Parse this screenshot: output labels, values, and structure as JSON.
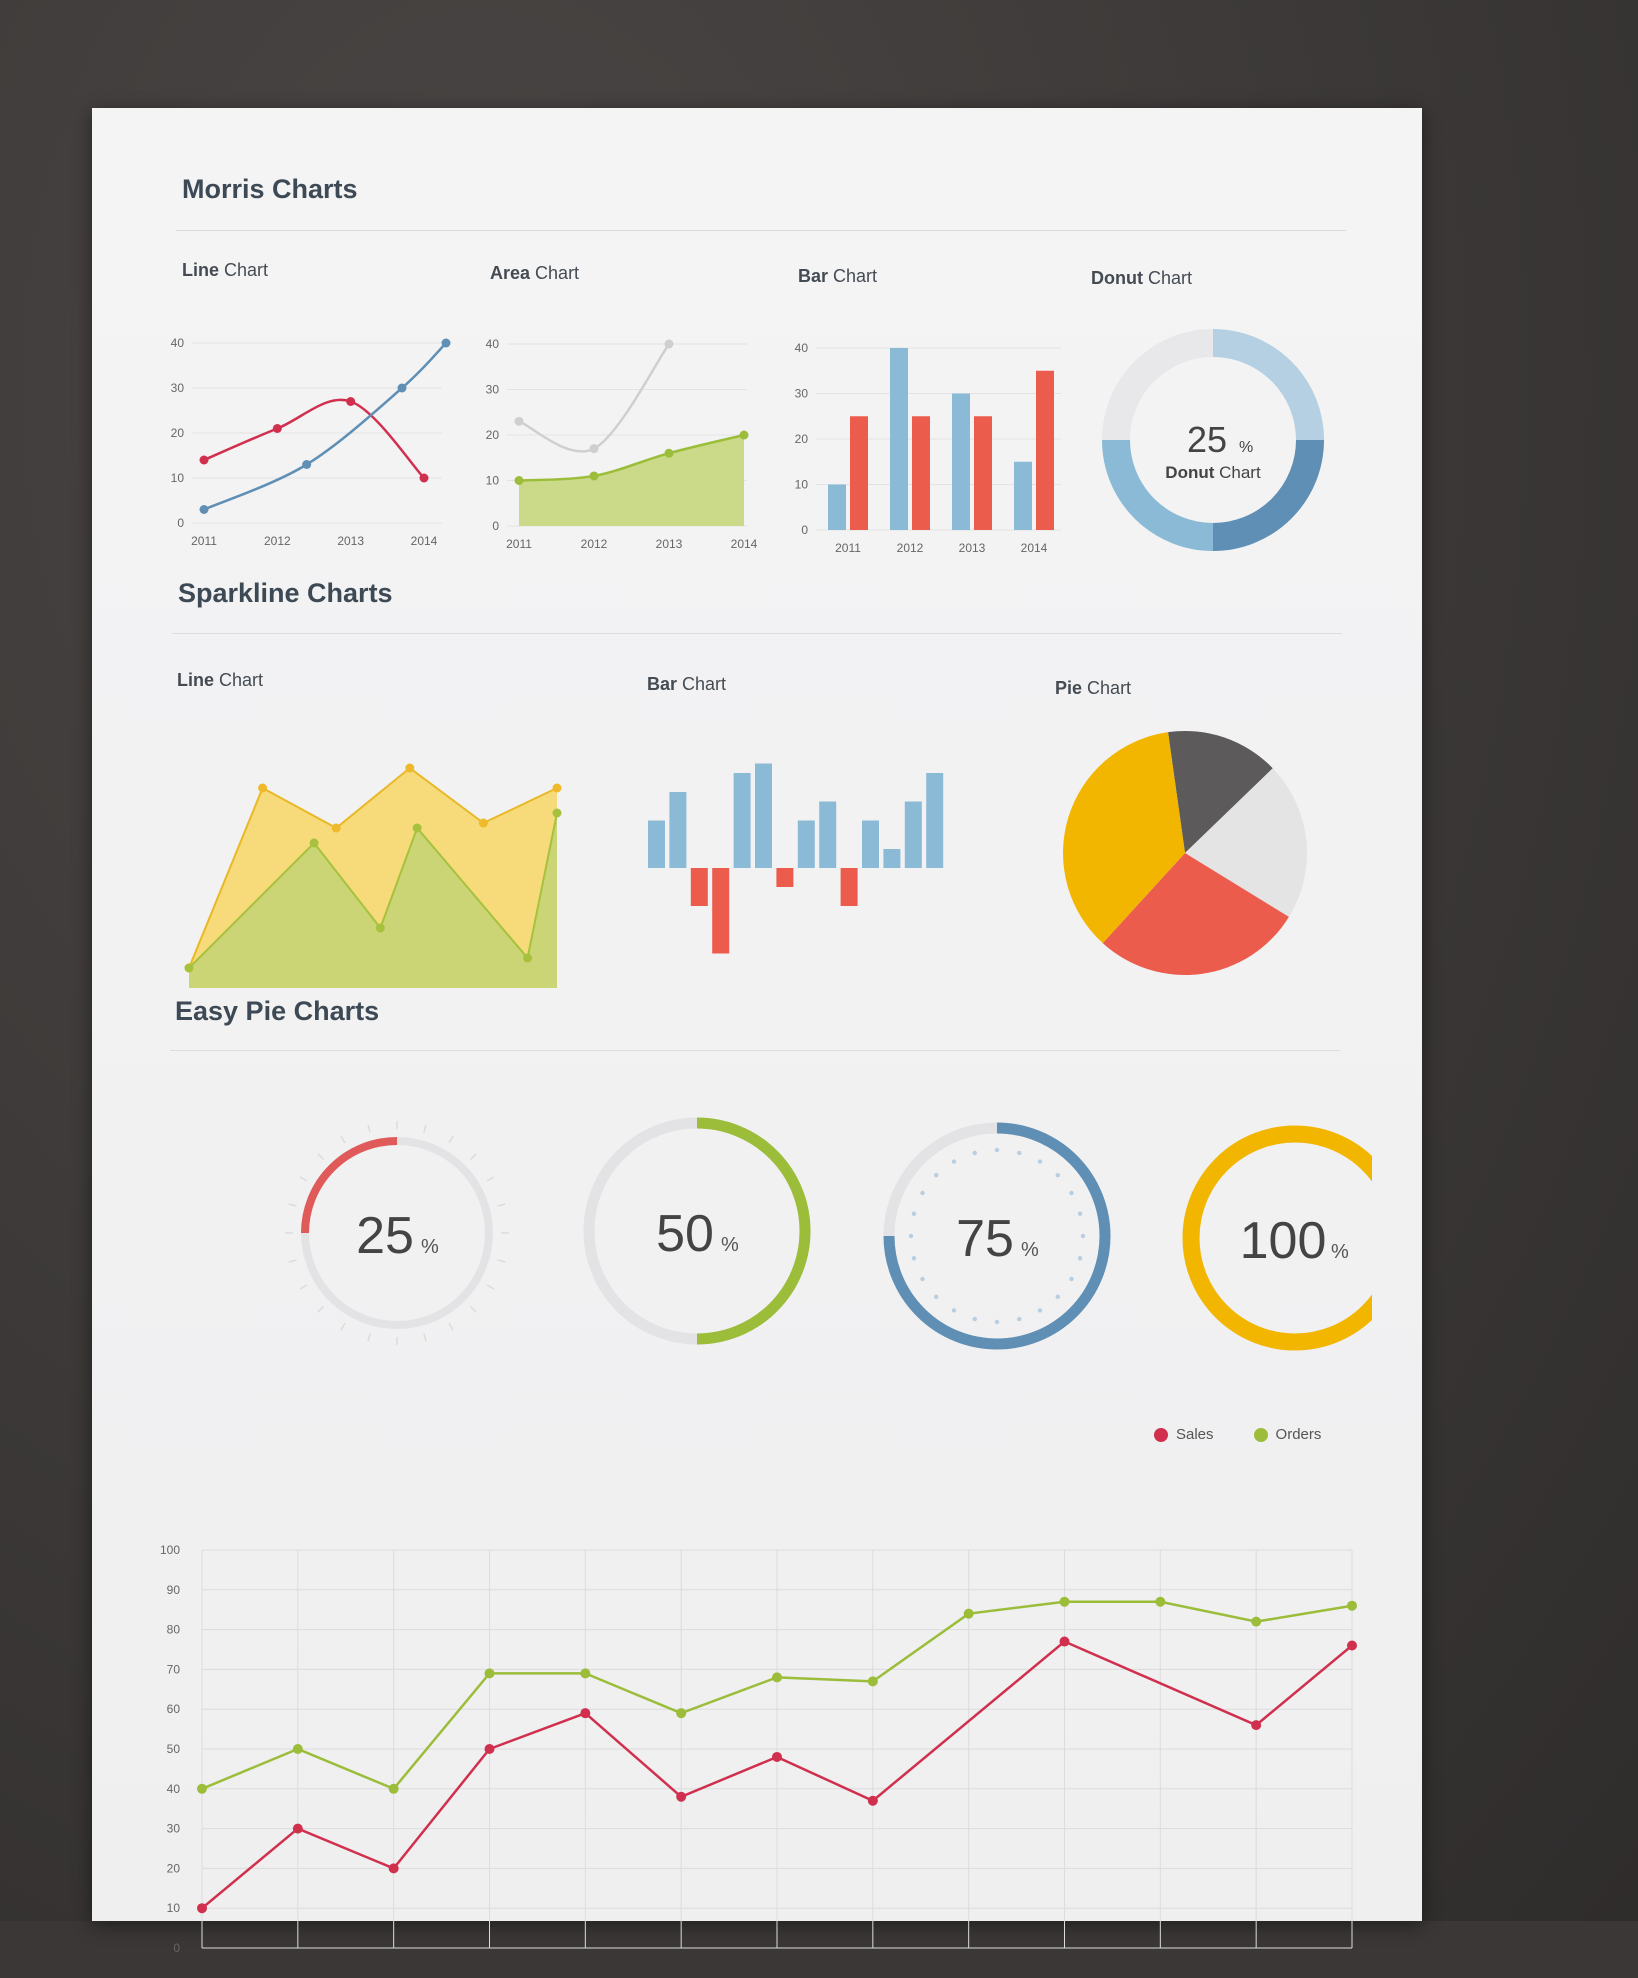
{
  "sections": {
    "morris": "Morris Charts",
    "sparkline": "Sparkline Charts",
    "easypie": "Easy Pie Charts"
  },
  "morris": {
    "line": {
      "title_bold": "Line",
      "title_rest": "Chart"
    },
    "area": {
      "title_bold": "Area",
      "title_rest": "Chart"
    },
    "bar": {
      "title_bold": "Bar",
      "title_rest": "Chart"
    },
    "donut": {
      "title_bold": "Donut",
      "title_rest": "Chart"
    }
  },
  "sparkline": {
    "line": {
      "title_bold": "Line",
      "title_rest": "Chart"
    },
    "bar": {
      "title_bold": "Bar",
      "title_rest": "Chart"
    },
    "pie": {
      "title_bold": "Pie",
      "title_rest": "Chart"
    }
  },
  "big_chart": {
    "legend": [
      "Sales",
      "Orders"
    ]
  },
  "colors": {
    "red": "#d0304e",
    "blue": "#5f8fb5",
    "lightblue": "#8bbad6",
    "green": "#9bbd3a",
    "yellow": "#f0c94a",
    "orange": "#f2b600",
    "coral": "#ec5c4d",
    "gray": "#cfcfcf",
    "darkgray": "#5c5a5b"
  },
  "chart_data": [
    {
      "type": "line",
      "id": "morris-line",
      "categories": [
        "2011",
        "2012",
        "2013",
        "2014"
      ],
      "yticks": [
        0,
        10,
        20,
        30,
        40
      ],
      "ylim": [
        0,
        40
      ],
      "series": [
        {
          "x": [
            2011,
            2012,
            2013,
            2014
          ],
          "values": [
            14,
            21,
            27,
            10
          ],
          "color": "#d0304e"
        },
        {
          "x": [
            2011,
            2012.4,
            2013.7,
            2014.3
          ],
          "values": [
            3,
            13,
            30,
            40
          ],
          "color": "#5f8fb5"
        }
      ]
    },
    {
      "type": "area",
      "id": "morris-area",
      "categories": [
        "2011",
        "2012",
        "2013",
        "2014"
      ],
      "yticks": [
        0,
        10,
        20,
        30,
        40
      ],
      "ylim": [
        0,
        40
      ],
      "series": [
        {
          "x": [
            2011,
            2012,
            2013,
            2014
          ],
          "values": [
            23,
            17,
            40,
            null
          ],
          "color": "#cfcfcf"
        },
        {
          "x": [
            2011,
            2012,
            2013,
            2014
          ],
          "values": [
            10,
            11,
            16,
            20
          ],
          "color": "#9bbd3a"
        }
      ]
    },
    {
      "type": "bar",
      "id": "morris-bar",
      "categories": [
        "2011",
        "2012",
        "2013",
        "2014"
      ],
      "yticks": [
        0,
        10,
        20,
        30,
        40
      ],
      "ylim": [
        0,
        40
      ],
      "series": [
        {
          "values": [
            10,
            40,
            30,
            15
          ],
          "color": "#8bbad6"
        },
        {
          "values": [
            25,
            25,
            25,
            35
          ],
          "color": "#ec5c4d"
        }
      ]
    },
    {
      "type": "donut",
      "id": "morris-donut",
      "value": "25",
      "unit": "%",
      "label_bold": "Donut",
      "label_rest": "Chart",
      "segments": [
        {
          "value": 25,
          "color": "#b5d0e3"
        },
        {
          "value": 25,
          "color": "#5f8fb5"
        },
        {
          "value": 25,
          "color": "#8bbad6"
        },
        {
          "value": 25,
          "color": "#e8e8ea"
        }
      ]
    },
    {
      "type": "area",
      "id": "spark-line",
      "series": [
        {
          "values": [
            4,
            40,
            32,
            44,
            33,
            40
          ],
          "x": [
            0,
            1,
            2,
            3,
            4,
            5
          ],
          "color": "#f0c94a"
        },
        {
          "values": [
            4,
            29,
            12,
            32,
            6,
            35
          ],
          "x": [
            0,
            1.7,
            2.6,
            3.1,
            4.6,
            5
          ],
          "color": "#9bbd3a"
        }
      ]
    },
    {
      "type": "bar",
      "id": "spark-bar",
      "values": [
        5,
        8,
        -4,
        -9,
        10,
        11,
        -2,
        5,
        7,
        -4,
        5,
        2,
        7,
        10
      ],
      "positive_color": "#8bbad6",
      "negative_color": "#ec5c4d"
    },
    {
      "type": "pie",
      "id": "spark-pie",
      "slices": [
        {
          "value": 15,
          "color": "#5c5a5b"
        },
        {
          "value": 21,
          "color": "#e4e4e5"
        },
        {
          "value": 28,
          "color": "#ec5c4d"
        },
        {
          "value": 36,
          "color": "#f2b600"
        }
      ]
    },
    {
      "type": "pie",
      "id": "easy-pies",
      "items": [
        {
          "value": "25",
          "unit": "%",
          "color": "#e05a5a"
        },
        {
          "value": "50",
          "unit": "%",
          "color": "#9bbd3a"
        },
        {
          "value": "75",
          "unit": "%",
          "color": "#5f8fb5"
        },
        {
          "value": "100",
          "unit": "%",
          "color": "#f2b600"
        }
      ]
    },
    {
      "type": "line",
      "id": "big-chart",
      "yticks": [
        0,
        10,
        20,
        30,
        40,
        50,
        60,
        70,
        80,
        90,
        100
      ],
      "ylim": [
        0,
        100
      ],
      "series": [
        {
          "name": "Sales",
          "values": [
            10,
            30,
            20,
            50,
            59,
            38,
            48,
            37,
            null,
            77,
            null,
            56,
            76
          ],
          "color": "#d0304e"
        },
        {
          "name": "Orders",
          "values": [
            40,
            50,
            40,
            69,
            69,
            59,
            68,
            67,
            84,
            87,
            87,
            82,
            86
          ],
          "color": "#9bbd3a"
        }
      ]
    }
  ]
}
